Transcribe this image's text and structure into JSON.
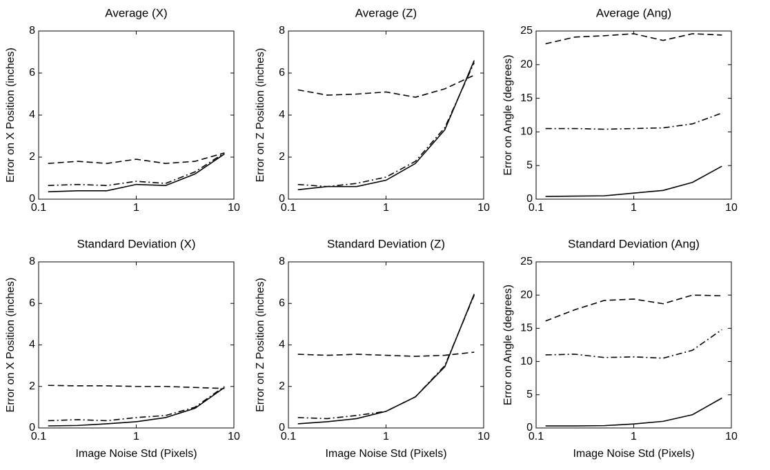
{
  "chart_data": [
    {
      "type": "line",
      "title": "Average (X)",
      "ylabel": "Error on X Position (inches)",
      "xscale": "log",
      "x": [
        0.125,
        0.25,
        0.5,
        1,
        2,
        4,
        8
      ],
      "xlim": [
        0.1,
        10
      ],
      "xticks": [
        0.1,
        1,
        10
      ],
      "ylim": [
        0,
        8
      ],
      "yticks": [
        0,
        2,
        4,
        6,
        8
      ],
      "series": [
        {
          "color": "#000000",
          "style": "solid",
          "values": [
            0.35,
            0.4,
            0.4,
            0.7,
            0.65,
            1.2,
            2.15
          ]
        },
        {
          "color": "#000000",
          "style": "dashed",
          "values": [
            1.7,
            1.8,
            1.7,
            1.9,
            1.7,
            1.8,
            2.2
          ]
        },
        {
          "color": "#000000",
          "style": "dashdot",
          "values": [
            0.65,
            0.7,
            0.65,
            0.85,
            0.75,
            1.3,
            2.2
          ]
        }
      ]
    },
    {
      "type": "line",
      "title": "Average (Z)",
      "ylabel": "Error on Z Position (inches)",
      "xscale": "log",
      "x": [
        0.125,
        0.25,
        0.5,
        1,
        2,
        4,
        8
      ],
      "xlim": [
        0.1,
        10
      ],
      "xticks": [
        0.1,
        1,
        10
      ],
      "ylim": [
        0,
        8
      ],
      "yticks": [
        0,
        2,
        4,
        6,
        8
      ],
      "series": [
        {
          "color": "#000000",
          "style": "solid",
          "values": [
            0.45,
            0.6,
            0.6,
            0.9,
            1.7,
            3.3,
            6.6
          ]
        },
        {
          "color": "#000000",
          "style": "dashed",
          "values": [
            5.2,
            4.95,
            5.0,
            5.1,
            4.85,
            5.25,
            5.9
          ]
        },
        {
          "color": "#000000",
          "style": "dashdot",
          "values": [
            0.7,
            0.6,
            0.75,
            1.05,
            1.8,
            3.4,
            6.5
          ]
        }
      ]
    },
    {
      "type": "line",
      "title": "Average (Ang)",
      "ylabel": "Error on Angle (degrees)",
      "xscale": "log",
      "x": [
        0.125,
        0.25,
        0.5,
        1,
        2,
        4,
        8
      ],
      "xlim": [
        0.1,
        10
      ],
      "xticks": [
        0.1,
        1,
        10
      ],
      "ylim": [
        0,
        25
      ],
      "yticks": [
        0,
        5,
        10,
        15,
        20,
        25
      ],
      "series": [
        {
          "color": "#000000",
          "style": "solid",
          "values": [
            0.4,
            0.45,
            0.5,
            0.9,
            1.3,
            2.5,
            4.9
          ]
        },
        {
          "color": "#000000",
          "style": "dashed",
          "values": [
            23.1,
            24.1,
            24.3,
            24.6,
            23.6,
            24.6,
            24.4
          ]
        },
        {
          "color": "#000000",
          "style": "dashdot",
          "values": [
            10.5,
            10.5,
            10.4,
            10.5,
            10.6,
            11.2,
            12.8
          ]
        }
      ]
    },
    {
      "type": "line",
      "title": "Standard Deviation (X)",
      "ylabel": "Error on X Position (inches)",
      "xlabel": "Image Noise Std (Pixels)",
      "xscale": "log",
      "x": [
        0.125,
        0.25,
        0.5,
        1,
        2,
        4,
        8
      ],
      "xlim": [
        0.1,
        10
      ],
      "xticks": [
        0.1,
        1,
        10
      ],
      "ylim": [
        0,
        8
      ],
      "yticks": [
        0,
        2,
        4,
        6,
        8
      ],
      "series": [
        {
          "color": "#000000",
          "style": "solid",
          "values": [
            0.1,
            0.12,
            0.2,
            0.3,
            0.5,
            0.95,
            1.95
          ]
        },
        {
          "color": "#000000",
          "style": "dashed",
          "values": [
            2.05,
            2.03,
            2.03,
            2.0,
            2.0,
            1.95,
            1.9
          ]
        },
        {
          "color": "#000000",
          "style": "dashdot",
          "values": [
            0.35,
            0.4,
            0.35,
            0.5,
            0.6,
            1.0,
            2.0
          ]
        }
      ]
    },
    {
      "type": "line",
      "title": "Standard Deviation (Z)",
      "ylabel": "Error on Z Position (inches)",
      "xlabel": "Image Noise Std (Pixels)",
      "xscale": "log",
      "x": [
        0.125,
        0.25,
        0.5,
        1,
        2,
        4,
        8
      ],
      "xlim": [
        0.1,
        10
      ],
      "xticks": [
        0.1,
        1,
        10
      ],
      "ylim": [
        0,
        8
      ],
      "yticks": [
        0,
        2,
        4,
        6,
        8
      ],
      "series": [
        {
          "color": "#000000",
          "style": "solid",
          "values": [
            0.2,
            0.3,
            0.45,
            0.8,
            1.5,
            2.95,
            6.45
          ]
        },
        {
          "color": "#000000",
          "style": "dashed",
          "values": [
            3.55,
            3.5,
            3.55,
            3.5,
            3.45,
            3.5,
            3.65
          ]
        },
        {
          "color": "#000000",
          "style": "dashdot",
          "values": [
            0.5,
            0.45,
            0.6,
            0.8,
            1.5,
            3.0,
            6.4
          ]
        }
      ]
    },
    {
      "type": "line",
      "title": "Standard Deviation (Ang)",
      "ylabel": "Error on Angle (degrees)",
      "xlabel": "Image Noise Std (Pixels)",
      "xscale": "log",
      "x": [
        0.125,
        0.25,
        0.5,
        1,
        2,
        4,
        8
      ],
      "xlim": [
        0.1,
        10
      ],
      "xticks": [
        0.1,
        1,
        10
      ],
      "ylim": [
        0,
        25
      ],
      "yticks": [
        0,
        5,
        10,
        15,
        20,
        25
      ],
      "series": [
        {
          "color": "#000000",
          "style": "solid",
          "values": [
            0.3,
            0.3,
            0.35,
            0.6,
            1.0,
            2.0,
            4.5
          ]
        },
        {
          "color": "#000000",
          "style": "dashed",
          "values": [
            16.1,
            17.8,
            19.2,
            19.4,
            18.7,
            20.0,
            19.9
          ]
        },
        {
          "color": "#000000",
          "style": "dashdot",
          "values": [
            11.0,
            11.1,
            10.6,
            10.7,
            10.5,
            11.7,
            14.8
          ]
        }
      ]
    }
  ]
}
